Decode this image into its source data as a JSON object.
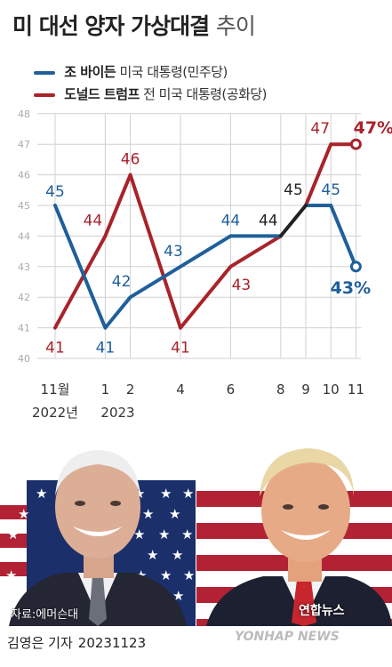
{
  "title": {
    "main": "미 대선 양자 가상대결",
    "sub": "추이"
  },
  "legend": [
    {
      "name": "조 바이든",
      "role": "미국 대통령(민주당)",
      "color": "#1f5f9a"
    },
    {
      "name": "도널드 트럼프",
      "role": "전 미국 대통령(공화당)",
      "color": "#a8232a"
    }
  ],
  "chart_data": {
    "type": "line",
    "x_ticks": [
      {
        "x": 0,
        "label": "11월"
      },
      {
        "x": 2,
        "label": "1"
      },
      {
        "x": 3,
        "label": "2"
      },
      {
        "x": 5,
        "label": "4"
      },
      {
        "x": 7,
        "label": "6"
      },
      {
        "x": 9,
        "label": "8"
      },
      {
        "x": 10,
        "label": "9"
      },
      {
        "x": 11,
        "label": "10"
      },
      {
        "x": 12,
        "label": "11"
      }
    ],
    "year_labels": [
      {
        "x": 0,
        "label": "2022년"
      },
      {
        "x": 2.5,
        "label": "2023"
      }
    ],
    "ylim": [
      40,
      48
    ],
    "y_ticks": [
      40,
      41,
      42,
      43,
      44,
      45,
      46,
      47,
      48
    ],
    "grid": true,
    "series": [
      {
        "name": "조 바이든",
        "color": "#1f5f9a",
        "x": [
          0,
          2,
          3,
          5,
          7,
          9,
          10,
          11,
          12
        ],
        "values": [
          45,
          41,
          42,
          43,
          44,
          44,
          45,
          45,
          43
        ],
        "labels": [
          "45",
          "41",
          "42",
          "43",
          "44",
          "",
          "",
          "45",
          "43%"
        ]
      },
      {
        "name": "도널드 트럼프",
        "color": "#a8232a",
        "x": [
          0,
          2,
          3,
          5,
          7,
          9,
          10,
          11,
          12
        ],
        "values": [
          41,
          44,
          46,
          41,
          43,
          44,
          45,
          47,
          47
        ],
        "labels": [
          "41",
          "44",
          "46",
          "41",
          "43",
          "",
          "",
          "47",
          "47%"
        ]
      }
    ],
    "tie_segment": {
      "color": "#222222",
      "x": [
        9,
        10
      ],
      "values": [
        44,
        45
      ],
      "labels": [
        "44",
        "45"
      ]
    }
  },
  "source": "자료:에머슨대",
  "logo": "연합뉴스",
  "reporter": {
    "name": "김영은 기자",
    "date": "20231123"
  },
  "watermark": "YONHAP NEWS"
}
